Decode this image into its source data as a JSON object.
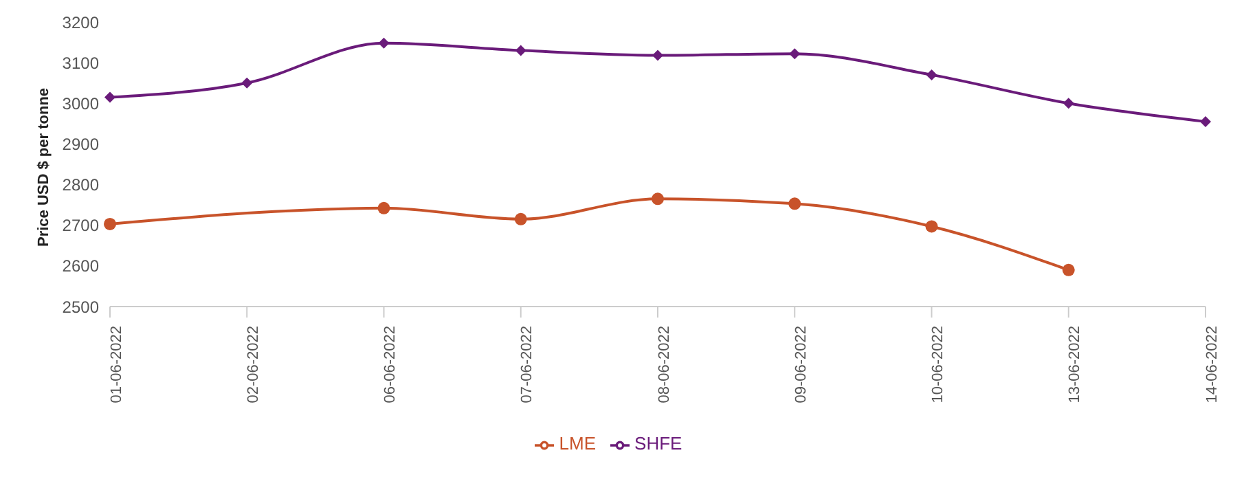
{
  "chart_data": {
    "type": "line",
    "ylabel": "Price USD $ per tonne",
    "categories": [
      "01-06-2022",
      "02-06-2022",
      "06-06-2022",
      "07-06-2022",
      "08-06-2022",
      "09-06-2022",
      "10-06-2022",
      "13-06-2022",
      "14-06-2022"
    ],
    "series": [
      {
        "name": "LME",
        "color": "#c8532a",
        "marker": "circle",
        "values": [
          2703,
          null,
          2742,
          2715,
          2765,
          2753,
          2697,
          2590,
          null
        ]
      },
      {
        "name": "SHFE",
        "color": "#6a1b7a",
        "marker": "diamond",
        "values": [
          3015,
          3050,
          3148,
          3130,
          3118,
          3122,
          3070,
          3000,
          2955
        ]
      }
    ],
    "ylim": [
      2500,
      3200
    ],
    "yticks": [
      2500,
      2600,
      2700,
      2800,
      2900,
      3000,
      3100,
      3200
    ],
    "legend": "bottom"
  }
}
